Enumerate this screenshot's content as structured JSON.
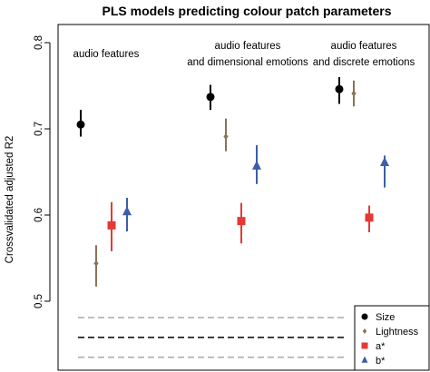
{
  "chart_data": {
    "type": "scatter",
    "title": "PLS models predicting colour patch parameters",
    "ylabel": "Crossvalidated adjusted R2",
    "ylim": [
      0.45,
      0.81
    ],
    "yticks": [
      0.5,
      0.6,
      0.7,
      0.8
    ],
    "tick_labels": [
      "0.5",
      "0.6",
      "0.7",
      "0.8"
    ],
    "groups": [
      {
        "lines": [
          "audio features"
        ]
      },
      {
        "lines": [
          "audio features",
          "and dimensional emotions"
        ]
      },
      {
        "lines": [
          "audio features",
          "and discrete emotions"
        ]
      }
    ],
    "series": [
      {
        "name": "Size",
        "color": "#000000",
        "marker": "circle",
        "values": [
          0.705,
          0.737,
          0.746
        ],
        "low": [
          0.691,
          0.722,
          0.729
        ],
        "high": [
          0.722,
          0.751,
          0.76
        ]
      },
      {
        "name": "Lightness",
        "color": "#8b7355",
        "marker": "diamond",
        "values": [
          0.544,
          0.691,
          0.741
        ],
        "low": [
          0.517,
          0.674,
          0.726
        ],
        "high": [
          0.565,
          0.712,
          0.756
        ]
      },
      {
        "name": "a*",
        "color": "#e53935",
        "marker": "square",
        "values": [
          0.588,
          0.593,
          0.597
        ],
        "low": [
          0.558,
          0.567,
          0.58
        ],
        "high": [
          0.615,
          0.614,
          0.611
        ]
      },
      {
        "name": "b*",
        "color": "#3b5fa8",
        "marker": "triangle",
        "values": [
          0.604,
          0.657,
          0.661
        ],
        "low": [
          0.581,
          0.636,
          0.632
        ],
        "high": [
          0.62,
          0.681,
          0.669
        ]
      }
    ],
    "reference_lines": [
      {
        "value": 0.481,
        "color": "#aaaaaa"
      },
      {
        "value": 0.458,
        "color": "#000000"
      },
      {
        "value": 0.435,
        "color": "#aaaaaa"
      }
    ],
    "legend_position": "bottom-right"
  }
}
